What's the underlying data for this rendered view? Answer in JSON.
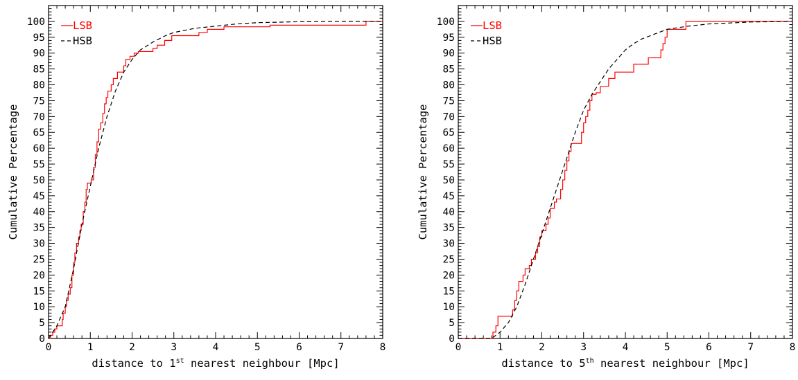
{
  "chart_data": [
    {
      "type": "line",
      "xlabel": {
        "pre": "distance to 1",
        "sup": "st",
        "post": " nearest neighbour [Mpc]"
      },
      "ylabel": "Cumulative Percentage",
      "xlim": [
        0,
        8
      ],
      "ylim": [
        0,
        105
      ],
      "x_ticks": [
        "0",
        "1",
        "2",
        "3",
        "4",
        "5",
        "6",
        "7",
        "8"
      ],
      "y_ticks": [
        "0",
        "5",
        "10",
        "15",
        "20",
        "25",
        "30",
        "35",
        "40",
        "45",
        "50",
        "55",
        "60",
        "65",
        "70",
        "75",
        "80",
        "85",
        "90",
        "95",
        "100"
      ],
      "grid": false,
      "legend_position": "top-left",
      "series": [
        {
          "name": "LSB",
          "color": "#ff0000",
          "style": "solid",
          "step": true,
          "points": [
            [
              0,
              0
            ],
            [
              0.05,
              1
            ],
            [
              0.1,
              2
            ],
            [
              0.15,
              3
            ],
            [
              0.2,
              4
            ],
            [
              0.3,
              4
            ],
            [
              0.33,
              6
            ],
            [
              0.35,
              8
            ],
            [
              0.4,
              10
            ],
            [
              0.43,
              12
            ],
            [
              0.47,
              14
            ],
            [
              0.52,
              16
            ],
            [
              0.56,
              20
            ],
            [
              0.6,
              24
            ],
            [
              0.63,
              27
            ],
            [
              0.67,
              30
            ],
            [
              0.72,
              32
            ],
            [
              0.75,
              34
            ],
            [
              0.78,
              36
            ],
            [
              0.83,
              40
            ],
            [
              0.87,
              43
            ],
            [
              0.9,
              47
            ],
            [
              0.93,
              49
            ],
            [
              1.02,
              50
            ],
            [
              1.08,
              54
            ],
            [
              1.12,
              58
            ],
            [
              1.16,
              62
            ],
            [
              1.2,
              66
            ],
            [
              1.25,
              68
            ],
            [
              1.3,
              71
            ],
            [
              1.34,
              74
            ],
            [
              1.38,
              76
            ],
            [
              1.42,
              78
            ],
            [
              1.5,
              80
            ],
            [
              1.55,
              82
            ],
            [
              1.65,
              84
            ],
            [
              1.75,
              84
            ],
            [
              1.8,
              86
            ],
            [
              1.85,
              88
            ],
            [
              1.95,
              89
            ],
            [
              2.05,
              90
            ],
            [
              2.15,
              90.5
            ],
            [
              2.4,
              90.5
            ],
            [
              2.5,
              91.5
            ],
            [
              2.6,
              92.5
            ],
            [
              2.7,
              92.5
            ],
            [
              2.78,
              94
            ],
            [
              2.9,
              94
            ],
            [
              2.95,
              95.5
            ],
            [
              3.3,
              95.5
            ],
            [
              3.6,
              96.5
            ],
            [
              3.7,
              96.5
            ],
            [
              3.8,
              97.5
            ],
            [
              4,
              97.5
            ],
            [
              4.2,
              98.3
            ],
            [
              5.2,
              98.3
            ],
            [
              5.3,
              98.8
            ],
            [
              7.5,
              98.8
            ],
            [
              7.6,
              100
            ],
            [
              8,
              100
            ]
          ]
        },
        {
          "name": "HSB",
          "color": "#000000",
          "style": "dashed",
          "step": false,
          "points": [
            [
              0,
              0
            ],
            [
              0.2,
              4
            ],
            [
              0.4,
              10
            ],
            [
              0.6,
              22
            ],
            [
              0.8,
              36
            ],
            [
              1,
              48
            ],
            [
              1.2,
              60
            ],
            [
              1.4,
              70
            ],
            [
              1.6,
              78
            ],
            [
              1.8,
              84
            ],
            [
              2,
              88
            ],
            [
              2.2,
              91
            ],
            [
              2.5,
              93.5
            ],
            [
              2.8,
              95.5
            ],
            [
              3,
              96.5
            ],
            [
              3.5,
              97.8
            ],
            [
              4,
              98.5
            ],
            [
              4.5,
              99.2
            ],
            [
              5,
              99.6
            ],
            [
              6,
              99.9
            ],
            [
              7,
              100
            ],
            [
              8,
              100
            ]
          ]
        }
      ]
    },
    {
      "type": "line",
      "xlabel": {
        "pre": "distance to 5",
        "sup": "th",
        "post": " nearest neighbour [Mpc]"
      },
      "ylabel": "Cumulative Percentage",
      "xlim": [
        0,
        8
      ],
      "ylim": [
        0,
        105
      ],
      "x_ticks": [
        "0",
        "1",
        "2",
        "3",
        "4",
        "5",
        "6",
        "7",
        "8"
      ],
      "y_ticks": [
        "0",
        "5",
        "10",
        "15",
        "20",
        "25",
        "30",
        "35",
        "40",
        "45",
        "50",
        "55",
        "60",
        "65",
        "70",
        "75",
        "80",
        "85",
        "90",
        "95",
        "100"
      ],
      "grid": false,
      "legend_position": "top-left",
      "series": [
        {
          "name": "LSB",
          "color": "#ff0000",
          "style": "solid",
          "step": true,
          "points": [
            [
              0,
              0
            ],
            [
              0.8,
              0
            ],
            [
              0.83,
              2
            ],
            [
              0.9,
              4
            ],
            [
              0.95,
              7
            ],
            [
              1.25,
              7
            ],
            [
              1.3,
              9
            ],
            [
              1.35,
              12
            ],
            [
              1.4,
              15
            ],
            [
              1.45,
              18
            ],
            [
              1.55,
              20
            ],
            [
              1.6,
              22
            ],
            [
              1.7,
              23
            ],
            [
              1.75,
              25
            ],
            [
              1.85,
              27
            ],
            [
              1.9,
              29
            ],
            [
              1.95,
              32
            ],
            [
              2,
              34
            ],
            [
              2.1,
              36
            ],
            [
              2.15,
              38
            ],
            [
              2.2,
              41
            ],
            [
              2.3,
              43
            ],
            [
              2.35,
              44
            ],
            [
              2.45,
              47
            ],
            [
              2.5,
              50
            ],
            [
              2.55,
              53
            ],
            [
              2.6,
              56
            ],
            [
              2.65,
              59
            ],
            [
              2.7,
              61.5
            ],
            [
              2.9,
              61.5
            ],
            [
              2.95,
              65
            ],
            [
              3,
              68
            ],
            [
              3.05,
              70
            ],
            [
              3.1,
              72
            ],
            [
              3.15,
              75
            ],
            [
              3.2,
              77
            ],
            [
              3.3,
              77.5
            ],
            [
              3.4,
              79.5
            ],
            [
              3.55,
              79.5
            ],
            [
              3.6,
              82
            ],
            [
              3.7,
              82
            ],
            [
              3.75,
              84
            ],
            [
              4.15,
              84
            ],
            [
              4.2,
              86.5
            ],
            [
              4.5,
              86.5
            ],
            [
              4.55,
              88.5
            ],
            [
              4.8,
              88.5
            ],
            [
              4.85,
              91
            ],
            [
              4.9,
              93
            ],
            [
              4.95,
              95
            ],
            [
              5,
              97.5
            ],
            [
              5.4,
              97.5
            ],
            [
              5.45,
              100
            ],
            [
              8,
              100
            ]
          ]
        },
        {
          "name": "HSB",
          "color": "#000000",
          "style": "dashed",
          "step": false,
          "points": [
            [
              0,
              0
            ],
            [
              0.8,
              0
            ],
            [
              1,
              2
            ],
            [
              1.2,
              5
            ],
            [
              1.4,
              10
            ],
            [
              1.6,
              17
            ],
            [
              1.8,
              25
            ],
            [
              2,
              33
            ],
            [
              2.2,
              41
            ],
            [
              2.4,
              49
            ],
            [
              2.6,
              57
            ],
            [
              2.8,
              65
            ],
            [
              3,
              72
            ],
            [
              3.2,
              77
            ],
            [
              3.4,
              81
            ],
            [
              3.6,
              85
            ],
            [
              3.8,
              88
            ],
            [
              4,
              91
            ],
            [
              4.2,
              93
            ],
            [
              4.4,
              94.5
            ],
            [
              4.6,
              95.5
            ],
            [
              4.8,
              96.5
            ],
            [
              5,
              97.5
            ],
            [
              5.5,
              98.5
            ],
            [
              6,
              99.2
            ],
            [
              7,
              99.8
            ],
            [
              8,
              100
            ]
          ]
        }
      ]
    }
  ]
}
